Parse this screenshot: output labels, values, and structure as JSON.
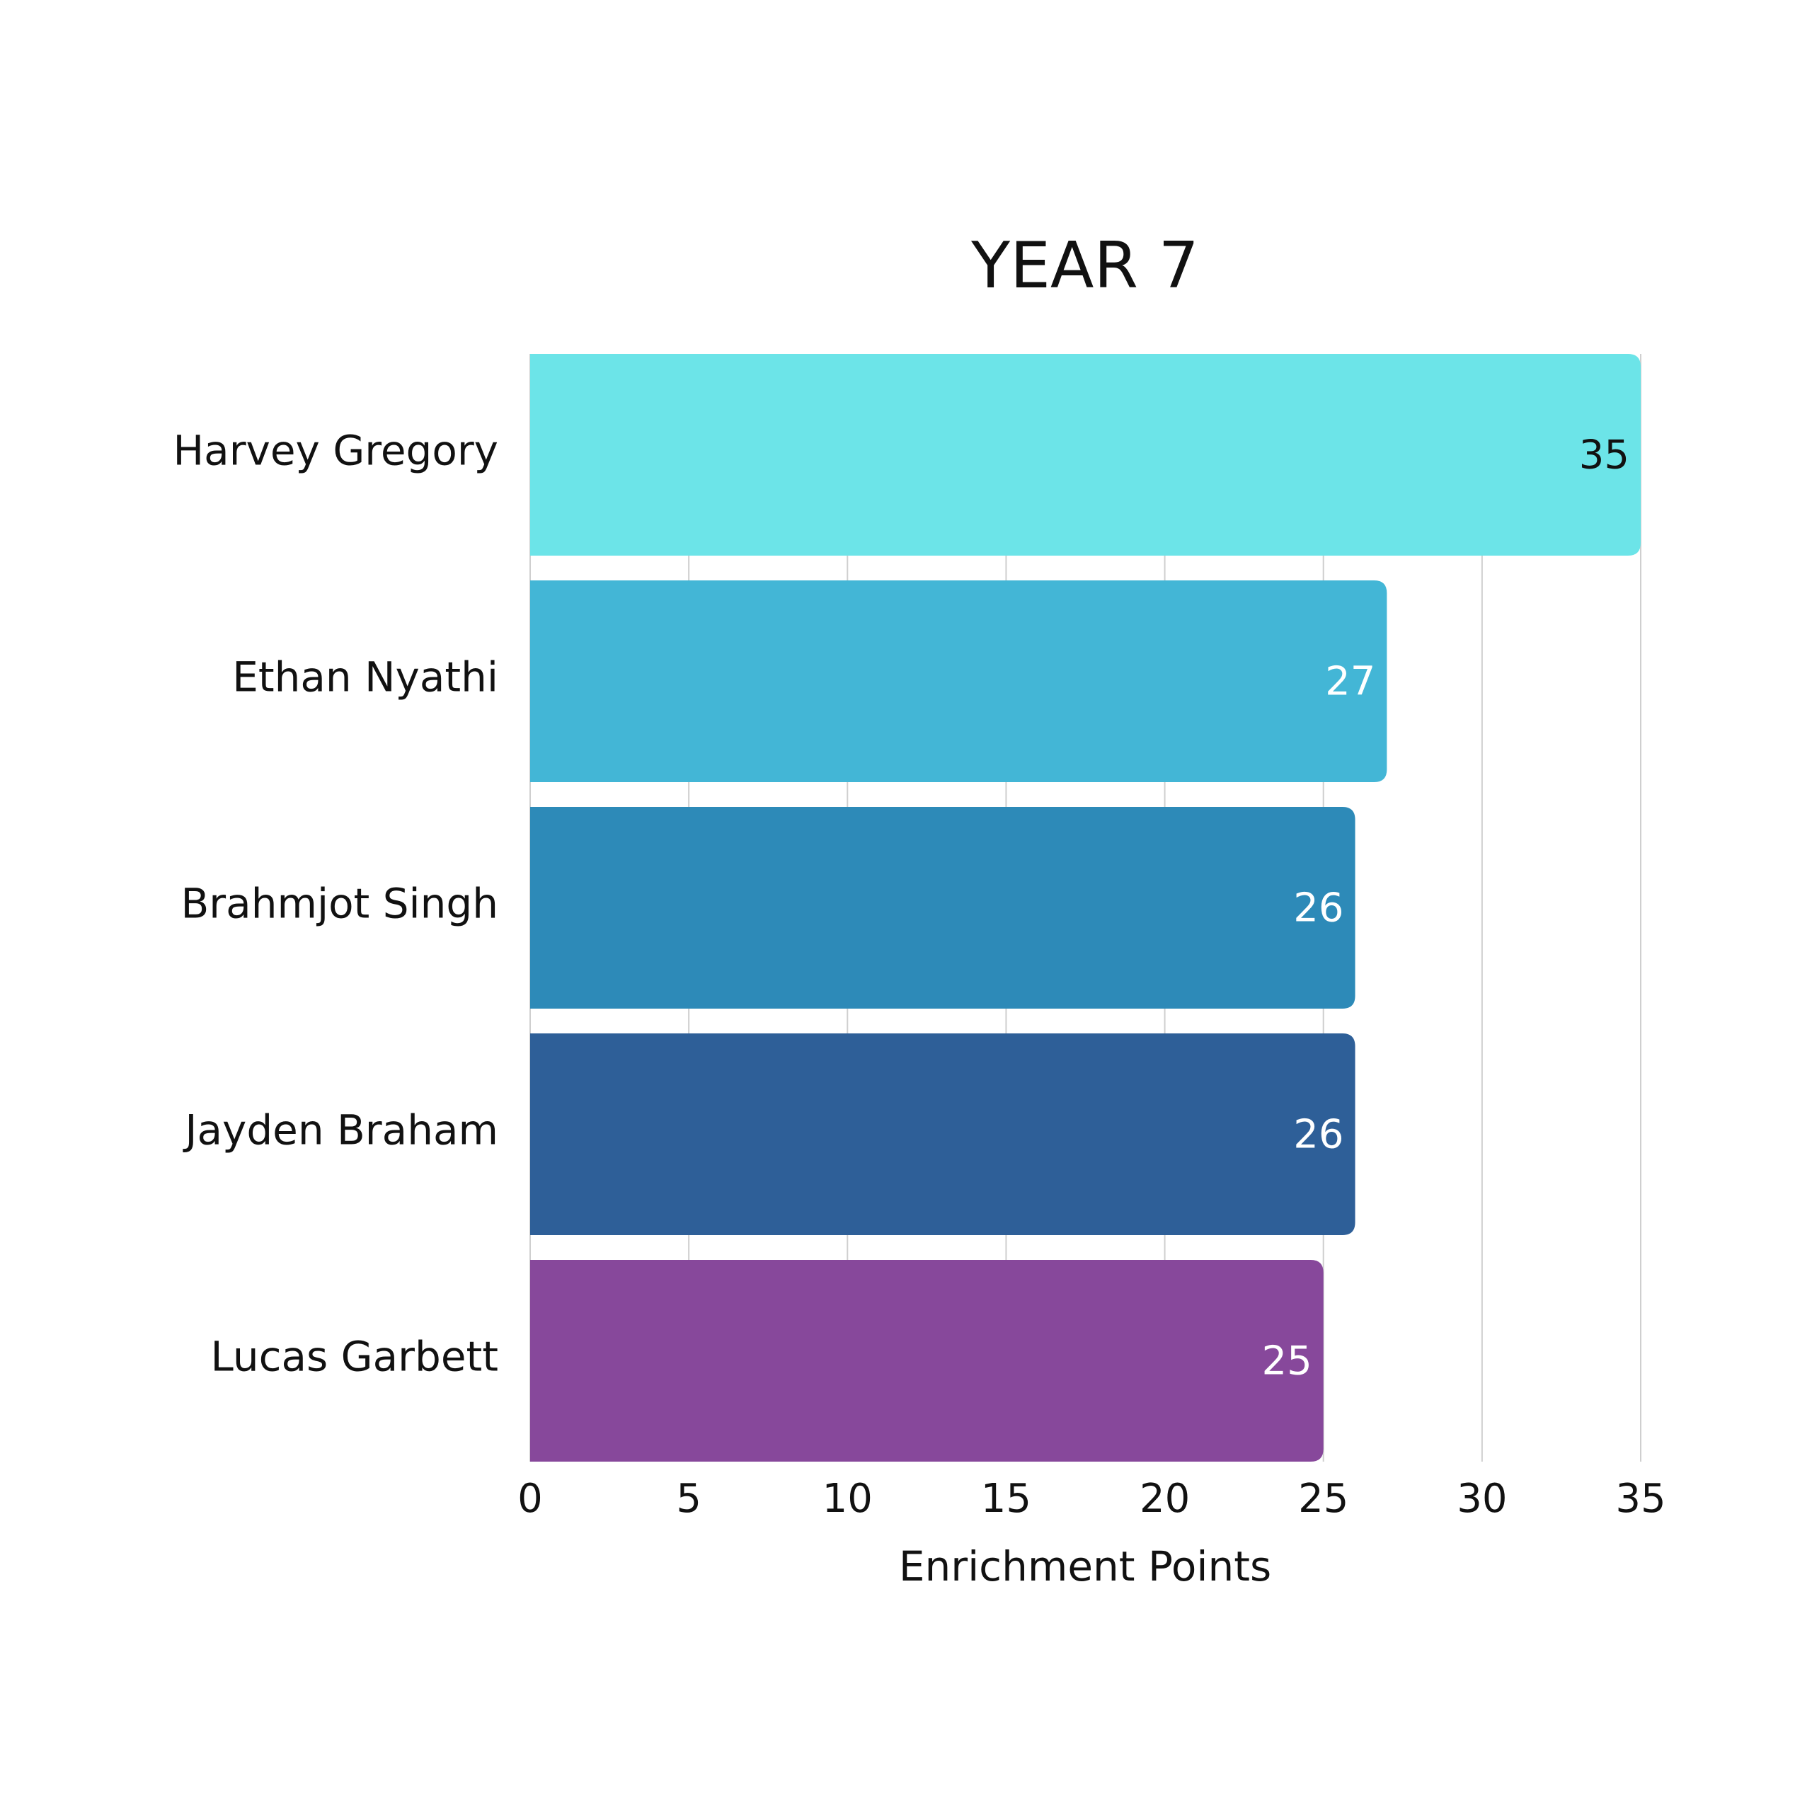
{
  "chart_data": {
    "type": "barh",
    "title": "YEAR 7",
    "categories": [
      "Harvey Gregory",
      "Ethan Nyathi",
      "Brahmjot Singh",
      "Jayden Braham",
      "Lucas Garbett"
    ],
    "values": [
      35,
      27,
      26,
      26,
      25
    ],
    "colors": [
      "#6ce4e8",
      "#43b6d6",
      "#2d8ab8",
      "#2e5f98",
      "#87489b"
    ],
    "xlabel": "Enrichment Points",
    "xlim": [
      0,
      35
    ],
    "xticks": [
      0,
      5,
      10,
      15,
      20,
      25,
      30,
      35
    ],
    "grid": true
  }
}
